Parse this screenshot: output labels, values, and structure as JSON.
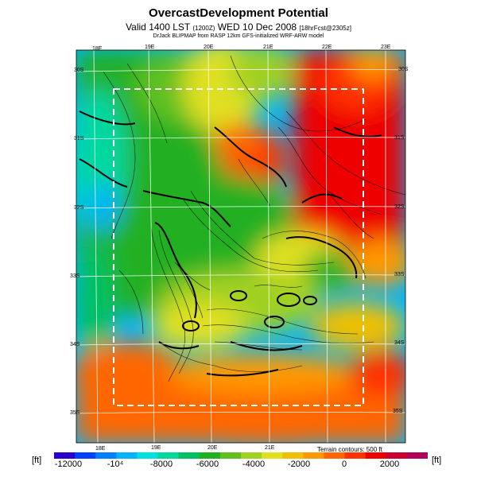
{
  "header": {
    "title": "OvercastDevelopment Potential",
    "valid_prefix": "Valid 1400 LST",
    "valid_small": "(1200Z)",
    "valid_date": "WED 10 Dec 2008",
    "valid_suffix": "[18hrFcst@2305z]",
    "credit": "DrJack BLIPMAP from RASP 12km GFS-initialized WRF-ARW model"
  },
  "map": {
    "lon_labels_top": [
      "18E",
      "19E",
      "20E",
      "21E",
      "22E",
      "23E"
    ],
    "lon_labels_bottom": [
      "18E",
      "19E",
      "20E",
      "21E"
    ],
    "lat_labels_left": [
      "30S",
      "31S",
      "32S",
      "33S",
      "34S",
      "35S"
    ],
    "lat_labels_right": [
      "30S",
      "31S",
      "32S",
      "33S",
      "34S",
      "35S"
    ],
    "terrain_note": "Terrain contours: 500 ft"
  },
  "colorbar": {
    "unit_left": "[ft]",
    "unit_right": "[ft]",
    "ticks": [
      "-12000",
      "-10⁴",
      "-8000",
      "-6000",
      "-4000",
      "-2000",
      "0",
      "2000"
    ],
    "colors": [
      "#2b00c8",
      "#0040ff",
      "#0080ff",
      "#00b4ff",
      "#00e0e0",
      "#00d8a0",
      "#00c060",
      "#20b020",
      "#60c020",
      "#a0d020",
      "#e0e020",
      "#f0c000",
      "#ff9900",
      "#ff6600",
      "#ff3300",
      "#ee0000",
      "#cc0030",
      "#b0005a"
    ]
  }
}
